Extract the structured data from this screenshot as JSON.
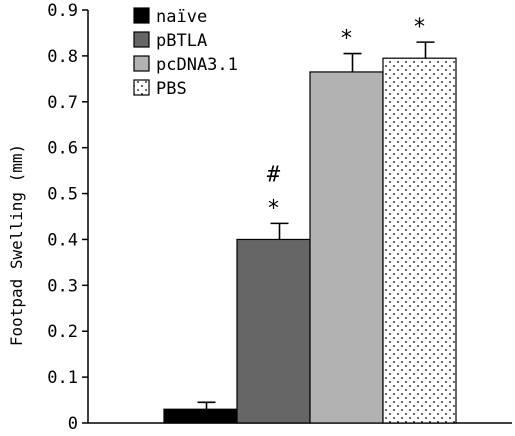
{
  "chart_data": {
    "type": "bar",
    "categories": [
      "naïve",
      "pBTLA",
      "pcDNA3.1",
      "PBS"
    ],
    "values": [
      0.03,
      0.4,
      0.765,
      0.795
    ],
    "errors": [
      0.015,
      0.035,
      0.04,
      0.035
    ],
    "ylabel": "Footpad Swelling (mm)",
    "ylim": [
      0,
      0.9
    ],
    "yticks": [
      "0",
      "0.1",
      "0.2",
      "0.3",
      "0.4",
      "0.5",
      "0.6",
      "0.7",
      "0.8",
      "0.9"
    ],
    "legend": [
      "naïve",
      "pBTLA",
      "pcDNA3.1",
      "PBS"
    ],
    "legend_position": "top-left",
    "colors": [
      "#000000",
      "#666666",
      "#b2b2b2",
      "#ffffff"
    ],
    "annotations": [
      {
        "category": "pBTLA",
        "marks": [
          "*",
          "#"
        ]
      },
      {
        "category": "pcDNA3.1",
        "marks": [
          "*"
        ]
      },
      {
        "category": "PBS",
        "marks": [
          "*"
        ]
      }
    ]
  }
}
